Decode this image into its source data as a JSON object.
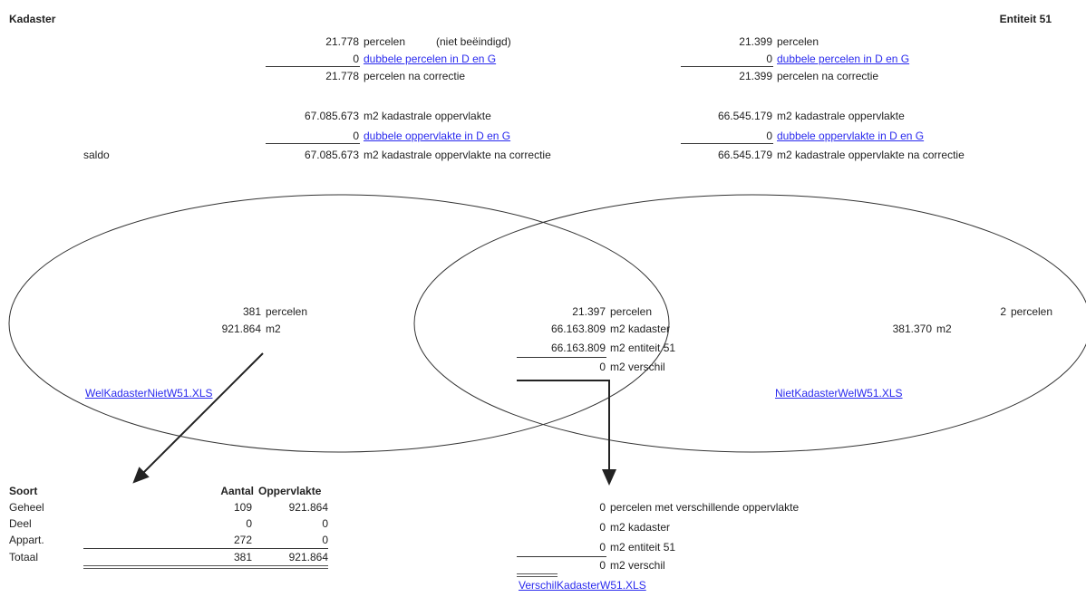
{
  "header": {
    "left_title": "Kadaster",
    "right_title": "Entiteit 51"
  },
  "kadaster": {
    "parcels": "21.778",
    "parcels_label": "percelen",
    "parcels_note": "(niet beëindigd)",
    "dup_parcels": "0",
    "dup_parcels_link": "dubbele percelen in D en G",
    "parcels_corr": "21.778",
    "parcels_corr_label": "percelen na correctie",
    "area": "67.085.673",
    "area_label": "m2 kadastrale oppervlakte",
    "dup_area": "0",
    "dup_area_link": "dubbele oppervlakte in D en G",
    "area_corr": "67.085.673",
    "area_corr_label": "m2 kadastrale oppervlakte na correctie",
    "saldo_label": "saldo"
  },
  "entiteit": {
    "parcels": "21.399",
    "parcels_label": "percelen",
    "dup_parcels": "0",
    "dup_parcels_link": "dubbele percelen in D en G",
    "parcels_corr": "21.399",
    "parcels_corr_label": "percelen na correctie",
    "area": "66.545.179",
    "area_label": "m2 kadastrale oppervlakte",
    "dup_area": "0",
    "dup_area_link": "dubbele oppervlakte in D en G",
    "area_corr": "66.545.179",
    "area_corr_label": "m2 kadastrale oppervlakte na correctie"
  },
  "venn": {
    "left": {
      "count": "381",
      "count_label": "percelen",
      "area": "921.864",
      "area_label": "m2",
      "link": "WelKadasterNietW51.XLS"
    },
    "middle": {
      "count": "21.397",
      "count_label": "percelen",
      "kad_area": "66.163.809",
      "kad_area_label": "m2 kadaster",
      "ent_area": "66.163.809",
      "ent_area_label": "m2 entiteit 51",
      "diff": "0",
      "diff_label": "m2 verschil"
    },
    "right": {
      "count": "2",
      "count_label": "percelen",
      "area": "381.370",
      "area_label": "m2",
      "link": "NietKadasterWelW51.XLS"
    }
  },
  "breakdown": {
    "headers": {
      "soort": "Soort",
      "aantal": "Aantal",
      "oppervlakte": "Oppervlakte"
    },
    "rows": [
      {
        "soort": "Geheel",
        "aantal": "109",
        "opp": "921.864"
      },
      {
        "soort": "Deel",
        "aantal": "0",
        "opp": "0"
      },
      {
        "soort": "Appart.",
        "aantal": "272",
        "opp": "0"
      },
      {
        "soort": "Totaal",
        "aantal": "381",
        "opp": "921.864"
      }
    ]
  },
  "diff_table": {
    "rows": [
      {
        "value": "0",
        "label": "percelen met verschillende oppervlakte"
      },
      {
        "value": "0",
        "label": "m2 kadaster"
      },
      {
        "value": "0",
        "label": "m2 entiteit 51"
      },
      {
        "value": "0",
        "label": "m2 verschil"
      }
    ],
    "link": "VerschilKadasterW51.XLS"
  }
}
